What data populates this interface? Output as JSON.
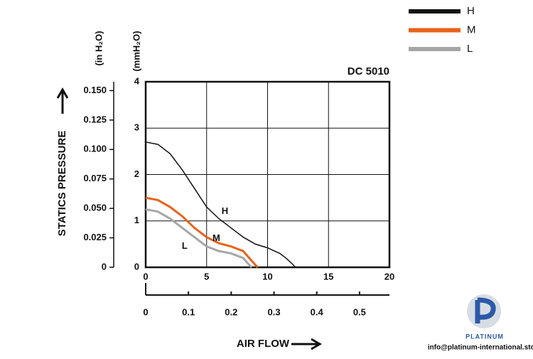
{
  "chart_data": {
    "type": "line",
    "title": "DC 5010",
    "y_label": "STATICS PRESSURE",
    "y_unit_label": "(mmH₂O)",
    "y2_unit_label": "(in H₂O)",
    "x_label": "AIR FLOW",
    "xlim": [
      0,
      20
    ],
    "xticks": [
      0,
      5,
      10,
      15,
      20
    ],
    "ylim": [
      0,
      4
    ],
    "yticks": [
      0,
      1,
      2,
      3,
      4
    ],
    "y2lim": [
      0,
      0.1575
    ],
    "y2ticks": [
      0,
      0.025,
      {
        "value": 0.05,
        "label": "0.050"
      },
      0.075,
      {
        "value": 0.1,
        "label": "0.100"
      },
      0.125,
      {
        "value": 0.15,
        "label": "0.150"
      }
    ],
    "x2lim": [
      0,
      0.57
    ],
    "x2ticks": [
      0,
      0.1,
      0.2,
      0.3,
      0.4,
      0.5
    ],
    "grid": true,
    "series": [
      {
        "name": "H",
        "color": "#111111",
        "x": [
          0,
          1,
          2,
          3,
          4,
          5,
          6,
          7,
          8,
          9,
          10,
          11,
          11.5,
          12,
          12.3
        ],
        "values": [
          2.7,
          2.65,
          2.45,
          2.1,
          1.7,
          1.3,
          1.05,
          0.85,
          0.65,
          0.5,
          0.42,
          0.3,
          0.2,
          0.08,
          0
        ]
      },
      {
        "name": "M",
        "color": "#e8621a",
        "x": [
          0,
          1,
          2,
          3,
          4,
          5,
          6,
          7,
          8,
          8.5,
          9,
          9.2
        ],
        "values": [
          1.5,
          1.45,
          1.3,
          1.1,
          0.85,
          0.65,
          0.52,
          0.45,
          0.35,
          0.2,
          0.05,
          0
        ]
      },
      {
        "name": "L",
        "color": "#a6a6a6",
        "x": [
          0,
          1,
          2,
          3,
          4,
          5,
          6,
          7,
          8,
          8.5,
          8.7
        ],
        "values": [
          1.25,
          1.2,
          1.05,
          0.85,
          0.65,
          0.45,
          0.35,
          0.3,
          0.2,
          0.05,
          0
        ]
      }
    ]
  },
  "watermark": {
    "brand": "PLATINUM",
    "email": "info@platinum-international.store"
  }
}
